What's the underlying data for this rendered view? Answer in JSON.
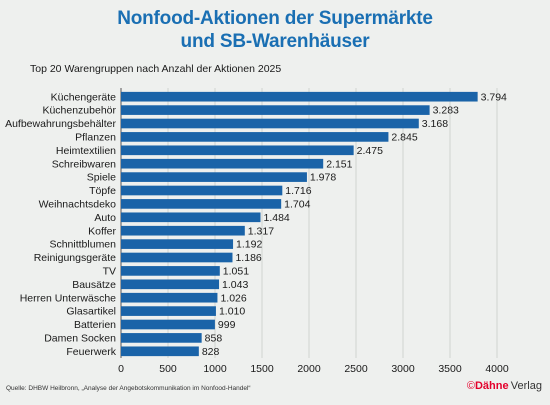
{
  "header": {
    "title_line1": "Nonfood-Aktionen der Supermärkte",
    "title_line2": "und SB-Warenhäuser",
    "subtitle": "Top 20 Warengruppen nach Anzahl der Aktionen 2025"
  },
  "footer": {
    "source": "Quelle: DHBW Heilbronn, „Analyse der Angebotskommunikation im Nonfood-Handel“",
    "copyright": "©",
    "brand_name": "Dähne",
    "brand_suffix": "Verlag"
  },
  "colors": {
    "bar": "#1a63a8",
    "title": "#1a6fb3",
    "grid": "#c8ccc8",
    "background": "#eef0ee"
  },
  "chart_data": {
    "type": "bar",
    "orientation": "horizontal",
    "title": "Top 20 Warengruppen nach Anzahl der Aktionen 2025",
    "xlabel": "",
    "ylabel": "",
    "xlim": [
      0,
      4000
    ],
    "xticks": [
      "0",
      "500",
      "1000",
      "1500",
      "2000",
      "2500",
      "3000",
      "3500",
      "4000"
    ],
    "grid": true,
    "categories": [
      "Küchengeräte",
      "Küchenzubehör",
      "Aufbewahrungsbehälter",
      "Pflanzen",
      "Heimtextilien",
      "Schreibwaren",
      "Spiele",
      "Töpfe",
      "Weihnachtsdeko",
      "Auto",
      "Koffer",
      "Schnittblumen",
      "Reinigungsgeräte",
      "TV",
      "Bausätze",
      "Herren Unterwäsche",
      "Glasartikel",
      "Batterien",
      "Damen Socken",
      "Feuerwerk"
    ],
    "values": [
      3794,
      3283,
      3168,
      2845,
      2475,
      2151,
      1978,
      1716,
      1704,
      1484,
      1317,
      1192,
      1186,
      1051,
      1043,
      1026,
      1010,
      999,
      858,
      828
    ],
    "value_labels": [
      "3.794",
      "3.283",
      "3.168",
      "2.845",
      "2.475",
      "2.151",
      "1.978",
      "1.716",
      "1.704",
      "1.484",
      "1.317",
      "1.192",
      "1.186",
      "1.051",
      "1.043",
      "1.026",
      "1.010",
      "999",
      "858",
      "828"
    ]
  }
}
